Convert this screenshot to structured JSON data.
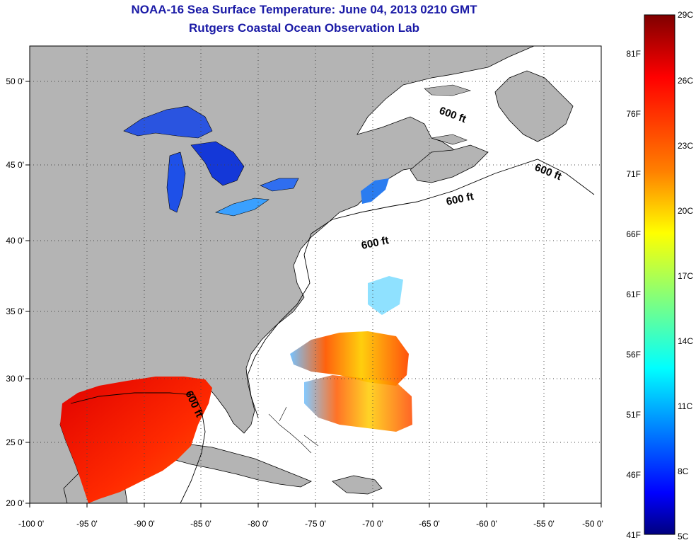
{
  "title": "NOAA-16 Sea Surface Temperature:  June 04, 2013 0210 GMT",
  "subtitle": "Rutgers Coastal Ocean Observation Lab",
  "map": {
    "lon_range": [
      -100,
      -50
    ],
    "lat_range": [
      20,
      52.5
    ],
    "lon_ticks": [
      "-100 0'",
      "-95 0'",
      "-90 0'",
      "-85 0'",
      "-80 0'",
      "-75 0'",
      "-70 0'",
      "-65 0'",
      "-60 0'",
      "-55 0'",
      "-50 0'"
    ],
    "lat_ticks": [
      "50 0'",
      "45 0'",
      "40 0'",
      "35 0'",
      "30 0'",
      "25 0'",
      "20 0'"
    ],
    "grid": "dotted",
    "land_color": "#b4b4b4",
    "water_color": "#ffffff",
    "contour_labels": [
      "600 ft",
      "600 ft",
      "600 ft",
      "600 ft",
      "600 ft"
    ]
  },
  "colorbar": {
    "celsius_labels": [
      "29C",
      "26C",
      "23C",
      "20C",
      "17C",
      "14C",
      "11C",
      "8C",
      "5C"
    ],
    "fahrenheit_labels": [
      "81F",
      "76F",
      "71F",
      "66F",
      "61F",
      "56F",
      "51F",
      "46F",
      "41F"
    ],
    "colors": [
      "#7f0000",
      "#ff0000",
      "#ff7f00",
      "#ffff00",
      "#7fff7f",
      "#00ffff",
      "#007fff",
      "#0000ff",
      "#00007f"
    ]
  }
}
